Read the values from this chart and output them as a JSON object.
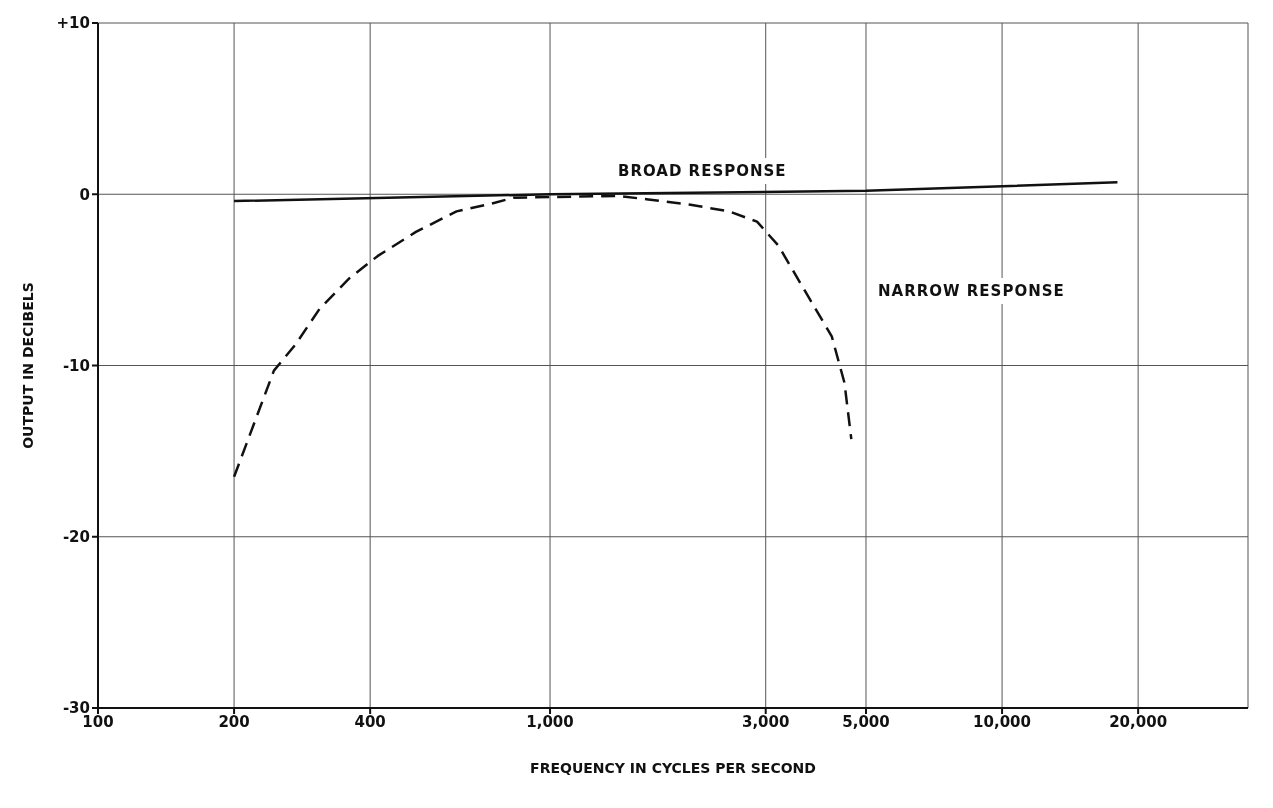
{
  "chart_data": {
    "type": "line",
    "xlabel": "FREQUENCY  IN  CYCLES  PER  SECOND",
    "ylabel": "OUTPUT  IN  DECIBELS",
    "log": "x",
    "xlim": [
      100,
      35000
    ],
    "xticks": [
      100,
      200,
      400,
      {
        "value": 1000,
        "label": "1,000"
      },
      {
        "value": 3000,
        "label": "3,000"
      },
      {
        "value": 5000,
        "label": "5,000"
      },
      {
        "value": 10000,
        "label": "10,000"
      },
      {
        "value": 20000,
        "label": "20,000"
      }
    ],
    "ylim": [
      -30,
      10
    ],
    "yticks": [
      -30,
      -20,
      -10,
      0,
      {
        "value": 10,
        "label": "+10"
      }
    ],
    "grid": true,
    "marker": "none",
    "series": [
      {
        "color": "#111111",
        "line_style": "solid",
        "x": [
          200,
          1000,
          5000,
          18000
        ],
        "values": [
          -0.4,
          0,
          0.2,
          0.7
        ]
      },
      {
        "color": "#111111",
        "line_style": "dashed",
        "x": [
          200,
          245,
          273,
          309,
          360,
          416,
          505,
          621,
          755,
          830,
          1410,
          1650,
          2030,
          2490,
          2870,
          3200,
          3750,
          4200,
          4480,
          4640
        ],
        "values": [
          -16.5,
          -10.3,
          -8.8,
          -6.7,
          -4.9,
          -3.6,
          -2.2,
          -1.0,
          -0.5,
          -0.2,
          -0.1,
          -0.3,
          -0.6,
          -1.0,
          -1.6,
          -3.0,
          -6.1,
          -8.3,
          -11.0,
          -14.3
        ]
      }
    ],
    "annotations": [
      "BROAD RESPONSE",
      "NARROW RESPONSE"
    ]
  }
}
